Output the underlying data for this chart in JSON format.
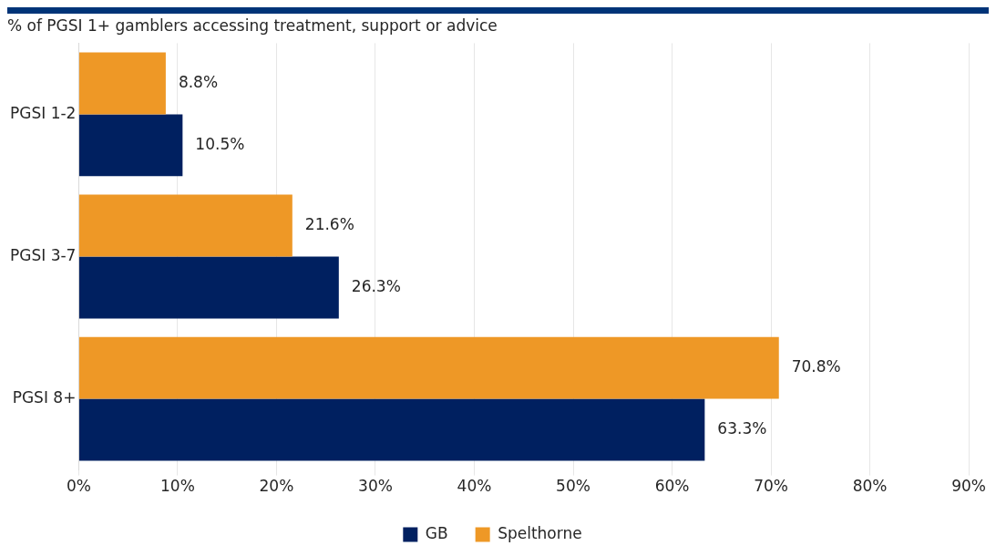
{
  "chart_data": {
    "type": "bar",
    "orientation": "horizontal",
    "title": "% of PGSI 1+ gamblers accessing treatment, support or advice",
    "categories": [
      "PGSI 1-2",
      "PGSI 3-7",
      "PGSI 8+"
    ],
    "series": [
      {
        "name": "GB",
        "color": "#002060",
        "values": [
          10.5,
          26.3,
          63.3
        ],
        "value_labels": [
          "10.5%",
          "26.3%",
          "63.3%"
        ]
      },
      {
        "name": "Spelthorne",
        "color": "#ee9826",
        "values": [
          8.8,
          21.6,
          70.8
        ],
        "value_labels": [
          "8.8%",
          "21.6%",
          "70.8%"
        ]
      }
    ],
    "xlim": [
      0,
      90
    ],
    "xticks": [
      {
        "value": 0,
        "label": "0%"
      },
      {
        "value": 10,
        "label": "10%"
      },
      {
        "value": 20,
        "label": "20%"
      },
      {
        "value": 30,
        "label": "30%"
      },
      {
        "value": 40,
        "label": "40%"
      },
      {
        "value": 50,
        "label": "50%"
      },
      {
        "value": 60,
        "label": "60%"
      },
      {
        "value": 70,
        "label": "70%"
      },
      {
        "value": 80,
        "label": "80%"
      },
      {
        "value": 90,
        "label": "90%"
      }
    ],
    "grid": "x",
    "legend": "bottom"
  }
}
